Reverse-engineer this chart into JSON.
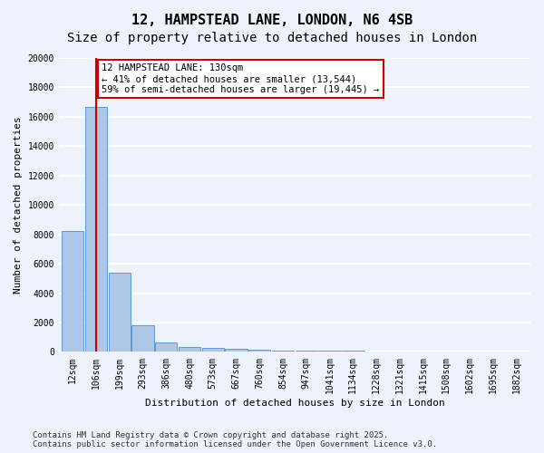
{
  "title_line1": "12, HAMPSTEAD LANE, LONDON, N6 4SB",
  "title_line2": "Size of property relative to detached houses in London",
  "xlabel": "Distribution of detached houses by size in London",
  "ylabel": "Number of detached properties",
  "bar_values": [
    8200,
    16700,
    5400,
    1800,
    650,
    350,
    250,
    200,
    150,
    100,
    80,
    70,
    60,
    50,
    40,
    30,
    20,
    15,
    10,
    8
  ],
  "bar_labels": [
    "12sqm",
    "106sqm",
    "199sqm",
    "293sqm",
    "386sqm",
    "480sqm",
    "573sqm",
    "667sqm",
    "760sqm",
    "854sqm",
    "947sqm",
    "1041sqm",
    "1134sqm",
    "1228sqm",
    "1321sqm",
    "1415sqm",
    "1508sqm",
    "1602sqm",
    "1695sqm",
    "1882sqm"
  ],
  "bar_color": "#aec6e8",
  "bar_edge_color": "#5b9bd5",
  "background_color": "#eef2fb",
  "grid_color": "#ffffff",
  "annotation_text": "12 HAMPSTEAD LANE: 130sqm\n← 41% of detached houses are smaller (13,544)\n59% of semi-detached houses are larger (19,445) →",
  "annotation_box_color": "#ffffff",
  "annotation_border_color": "#cc0000",
  "vline_x": 1,
  "vline_color": "#cc0000",
  "ylim": [
    0,
    20000
  ],
  "yticks": [
    0,
    2000,
    4000,
    6000,
    8000,
    10000,
    12000,
    14000,
    16000,
    18000,
    20000
  ],
  "footer_text": "Contains HM Land Registry data © Crown copyright and database right 2025.\nContains public sector information licensed under the Open Government Licence v3.0.",
  "title_fontsize": 11,
  "subtitle_fontsize": 10,
  "axis_label_fontsize": 8,
  "tick_fontsize": 7,
  "annotation_fontsize": 7.5,
  "footer_fontsize": 6.5
}
